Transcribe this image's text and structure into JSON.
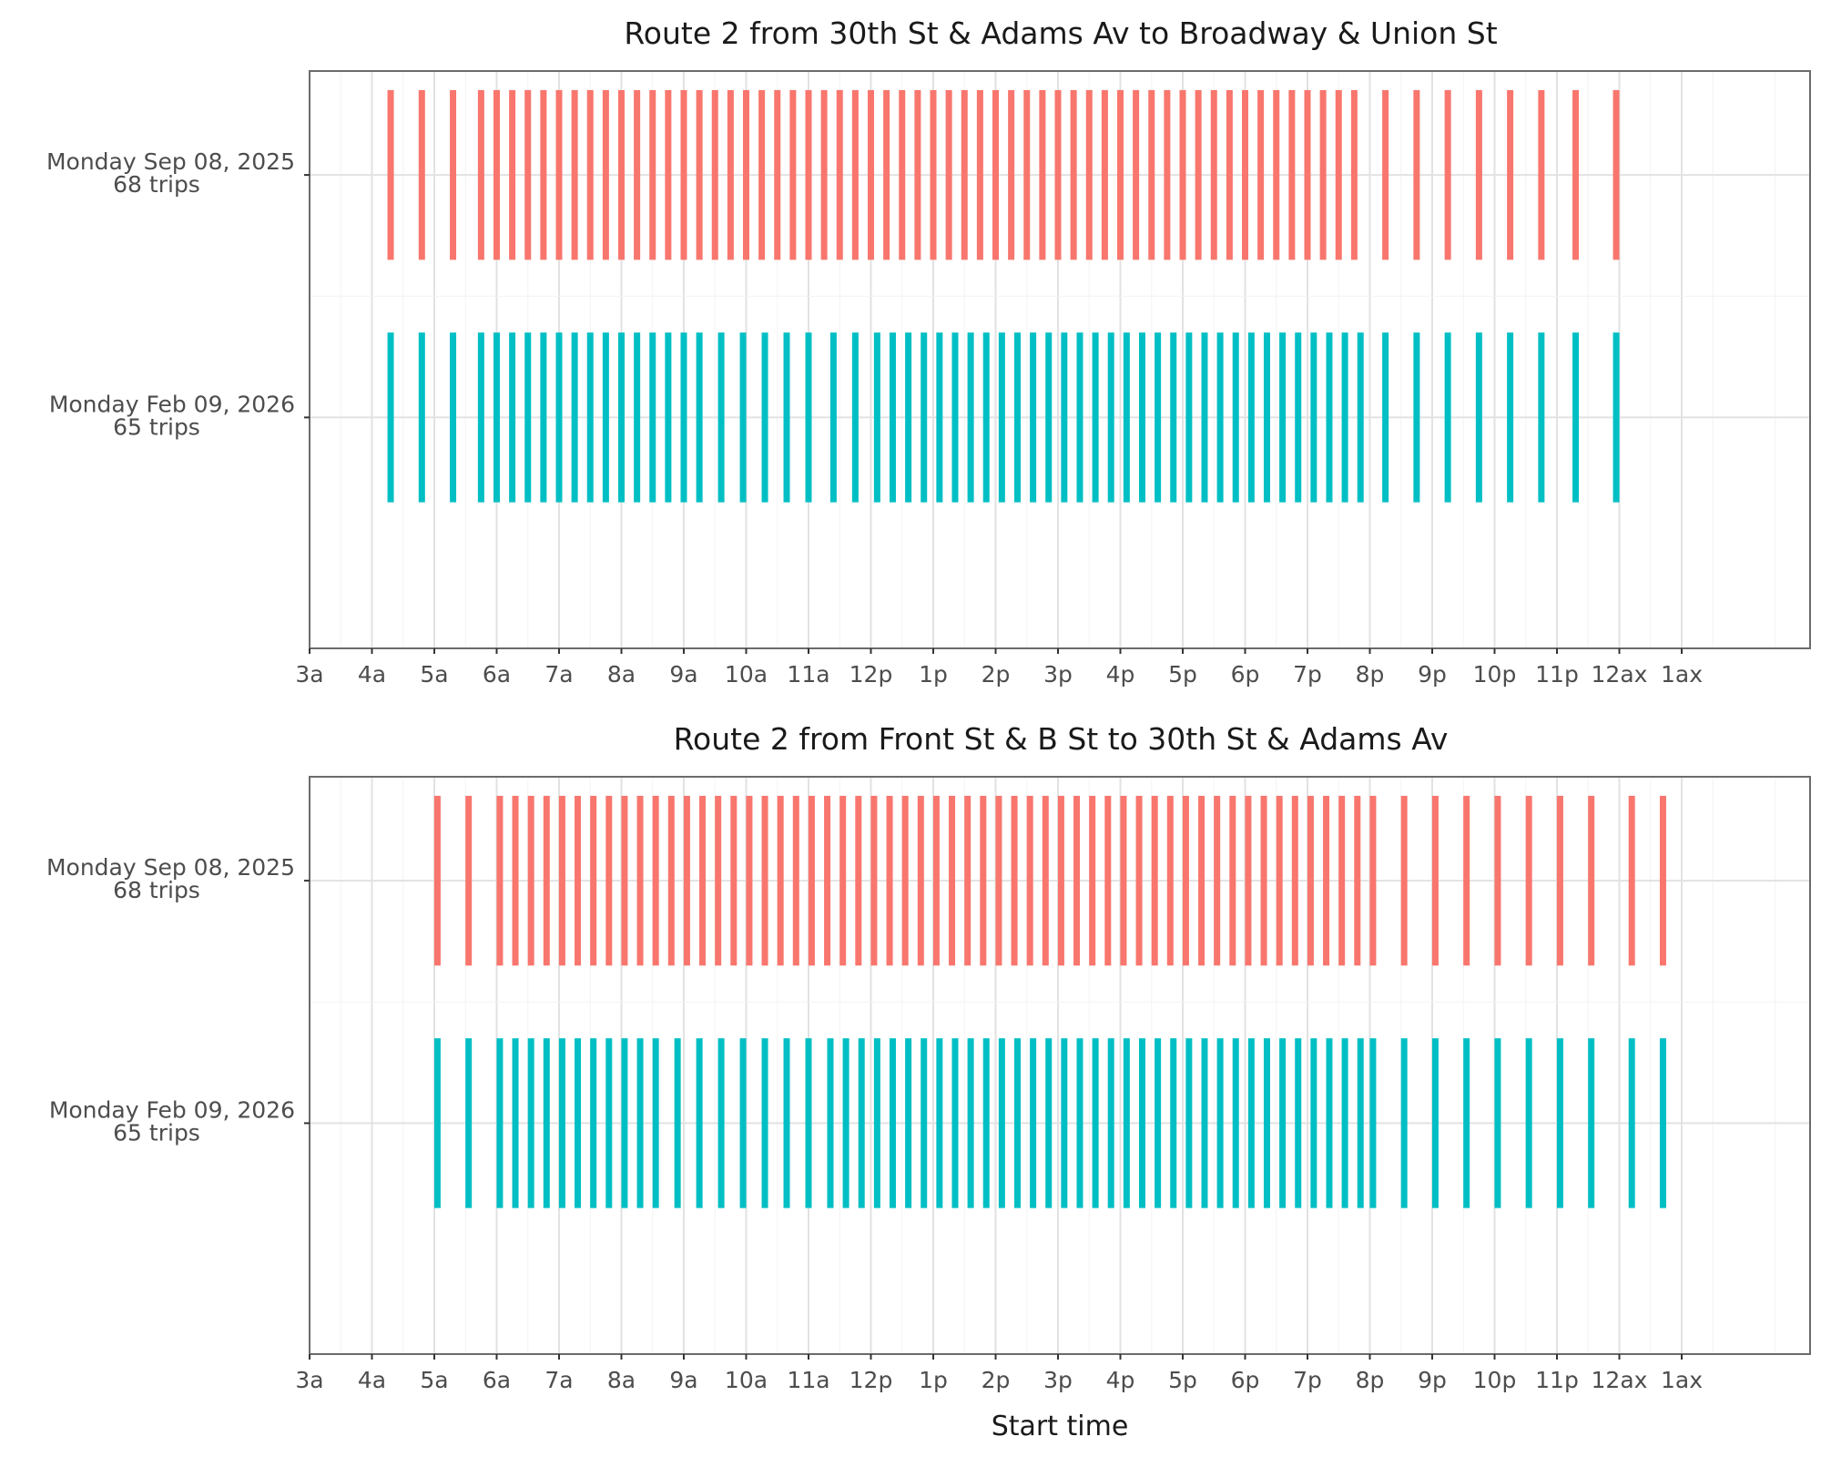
{
  "colors": {
    "series_2025": "#F8766D",
    "series_2026": "#00BFC4"
  },
  "chart_data": [
    {
      "type": "strip",
      "title": "Route 2 from 30th St & Adams Av to Broadway & Union St",
      "xlabel": "",
      "xlim": [
        3,
        26.8
      ],
      "tick_labels": [
        "3a",
        "4a",
        "5a",
        "6a",
        "7a",
        "8a",
        "9a",
        "10a",
        "11a",
        "12p",
        "1p",
        "2p",
        "3p",
        "4p",
        "5p",
        "6p",
        "7p",
        "8p",
        "9p",
        "10p",
        "11p",
        "12ax",
        "1ax"
      ],
      "series": [
        {
          "date": "Monday Sep 08, 2025",
          "trips_label": "68 trips",
          "color": "#F8766D",
          "times": [
            4.3,
            4.8,
            5.3,
            5.75,
            6.0,
            6.25,
            6.5,
            6.75,
            7.0,
            7.25,
            7.5,
            7.75,
            8.0,
            8.25,
            8.5,
            8.75,
            9.0,
            9.25,
            9.5,
            9.75,
            10.0,
            10.25,
            10.5,
            10.75,
            11.0,
            11.25,
            11.5,
            11.75,
            12.0,
            12.25,
            12.5,
            12.75,
            13.0,
            13.25,
            13.5,
            13.75,
            14.0,
            14.25,
            14.5,
            14.75,
            15.0,
            15.25,
            15.5,
            15.75,
            16.0,
            16.25,
            16.5,
            16.75,
            17.0,
            17.25,
            17.5,
            17.75,
            18.0,
            18.25,
            18.5,
            18.75,
            19.0,
            19.25,
            19.5,
            19.75,
            20.25,
            20.75,
            21.25,
            21.75,
            22.25,
            22.75,
            23.3,
            23.95
          ]
        },
        {
          "date": "Monday Feb 09, 2026",
          "trips_label": "65 trips",
          "color": "#00BFC4",
          "times": [
            4.3,
            4.8,
            5.3,
            5.75,
            6.0,
            6.25,
            6.5,
            6.75,
            7.0,
            7.25,
            7.5,
            7.75,
            8.0,
            8.25,
            8.5,
            8.75,
            9.0,
            9.25,
            9.6,
            9.95,
            10.3,
            10.65,
            11.0,
            11.4,
            11.75,
            12.1,
            12.35,
            12.6,
            12.85,
            13.1,
            13.35,
            13.6,
            13.85,
            14.1,
            14.35,
            14.6,
            14.85,
            15.1,
            15.35,
            15.6,
            15.85,
            16.1,
            16.35,
            16.6,
            16.85,
            17.1,
            17.35,
            17.6,
            17.85,
            18.1,
            18.35,
            18.6,
            18.85,
            19.1,
            19.35,
            19.6,
            19.85,
            20.25,
            20.75,
            21.25,
            21.75,
            22.25,
            22.75,
            23.3,
            23.95
          ]
        }
      ]
    },
    {
      "type": "strip",
      "title": "Route 2 from Front St & B St to 30th St & Adams Av",
      "xlabel": "Start time",
      "xlim": [
        3,
        26.8
      ],
      "tick_labels": [
        "3a",
        "4a",
        "5a",
        "6a",
        "7a",
        "8a",
        "9a",
        "10a",
        "11a",
        "12p",
        "1p",
        "2p",
        "3p",
        "4p",
        "5p",
        "6p",
        "7p",
        "8p",
        "9p",
        "10p",
        "11p",
        "12ax",
        "1ax"
      ],
      "series": [
        {
          "date": "Monday Sep 08, 2025",
          "trips_label": "68 trips",
          "color": "#F8766D",
          "times": [
            5.05,
            5.55,
            6.05,
            6.3,
            6.55,
            6.8,
            7.05,
            7.3,
            7.55,
            7.8,
            8.05,
            8.3,
            8.55,
            8.8,
            9.05,
            9.3,
            9.55,
            9.8,
            10.05,
            10.3,
            10.55,
            10.8,
            11.05,
            11.3,
            11.55,
            11.8,
            12.05,
            12.3,
            12.55,
            12.8,
            13.05,
            13.3,
            13.55,
            13.8,
            14.05,
            14.3,
            14.55,
            14.8,
            15.05,
            15.3,
            15.55,
            15.8,
            16.05,
            16.3,
            16.55,
            16.8,
            17.05,
            17.3,
            17.55,
            17.8,
            18.05,
            18.3,
            18.55,
            18.8,
            19.05,
            19.3,
            19.55,
            19.8,
            20.05,
            20.55,
            21.05,
            21.55,
            22.05,
            22.55,
            23.05,
            23.55,
            24.2,
            24.7
          ]
        },
        {
          "date": "Monday Feb 09, 2026",
          "trips_label": "65 trips",
          "color": "#00BFC4",
          "times": [
            5.05,
            5.55,
            6.05,
            6.3,
            6.55,
            6.8,
            7.05,
            7.3,
            7.55,
            7.8,
            8.05,
            8.3,
            8.55,
            8.9,
            9.25,
            9.6,
            9.95,
            10.3,
            10.65,
            11.0,
            11.35,
            11.6,
            11.85,
            12.1,
            12.35,
            12.6,
            12.85,
            13.1,
            13.35,
            13.6,
            13.85,
            14.1,
            14.35,
            14.6,
            14.85,
            15.1,
            15.35,
            15.6,
            15.85,
            16.1,
            16.35,
            16.6,
            16.85,
            17.1,
            17.35,
            17.6,
            17.85,
            18.1,
            18.35,
            18.6,
            18.85,
            19.1,
            19.35,
            19.6,
            19.85,
            20.05,
            20.55,
            21.05,
            21.55,
            22.05,
            22.55,
            23.05,
            23.55,
            24.2,
            24.7
          ]
        }
      ]
    }
  ]
}
